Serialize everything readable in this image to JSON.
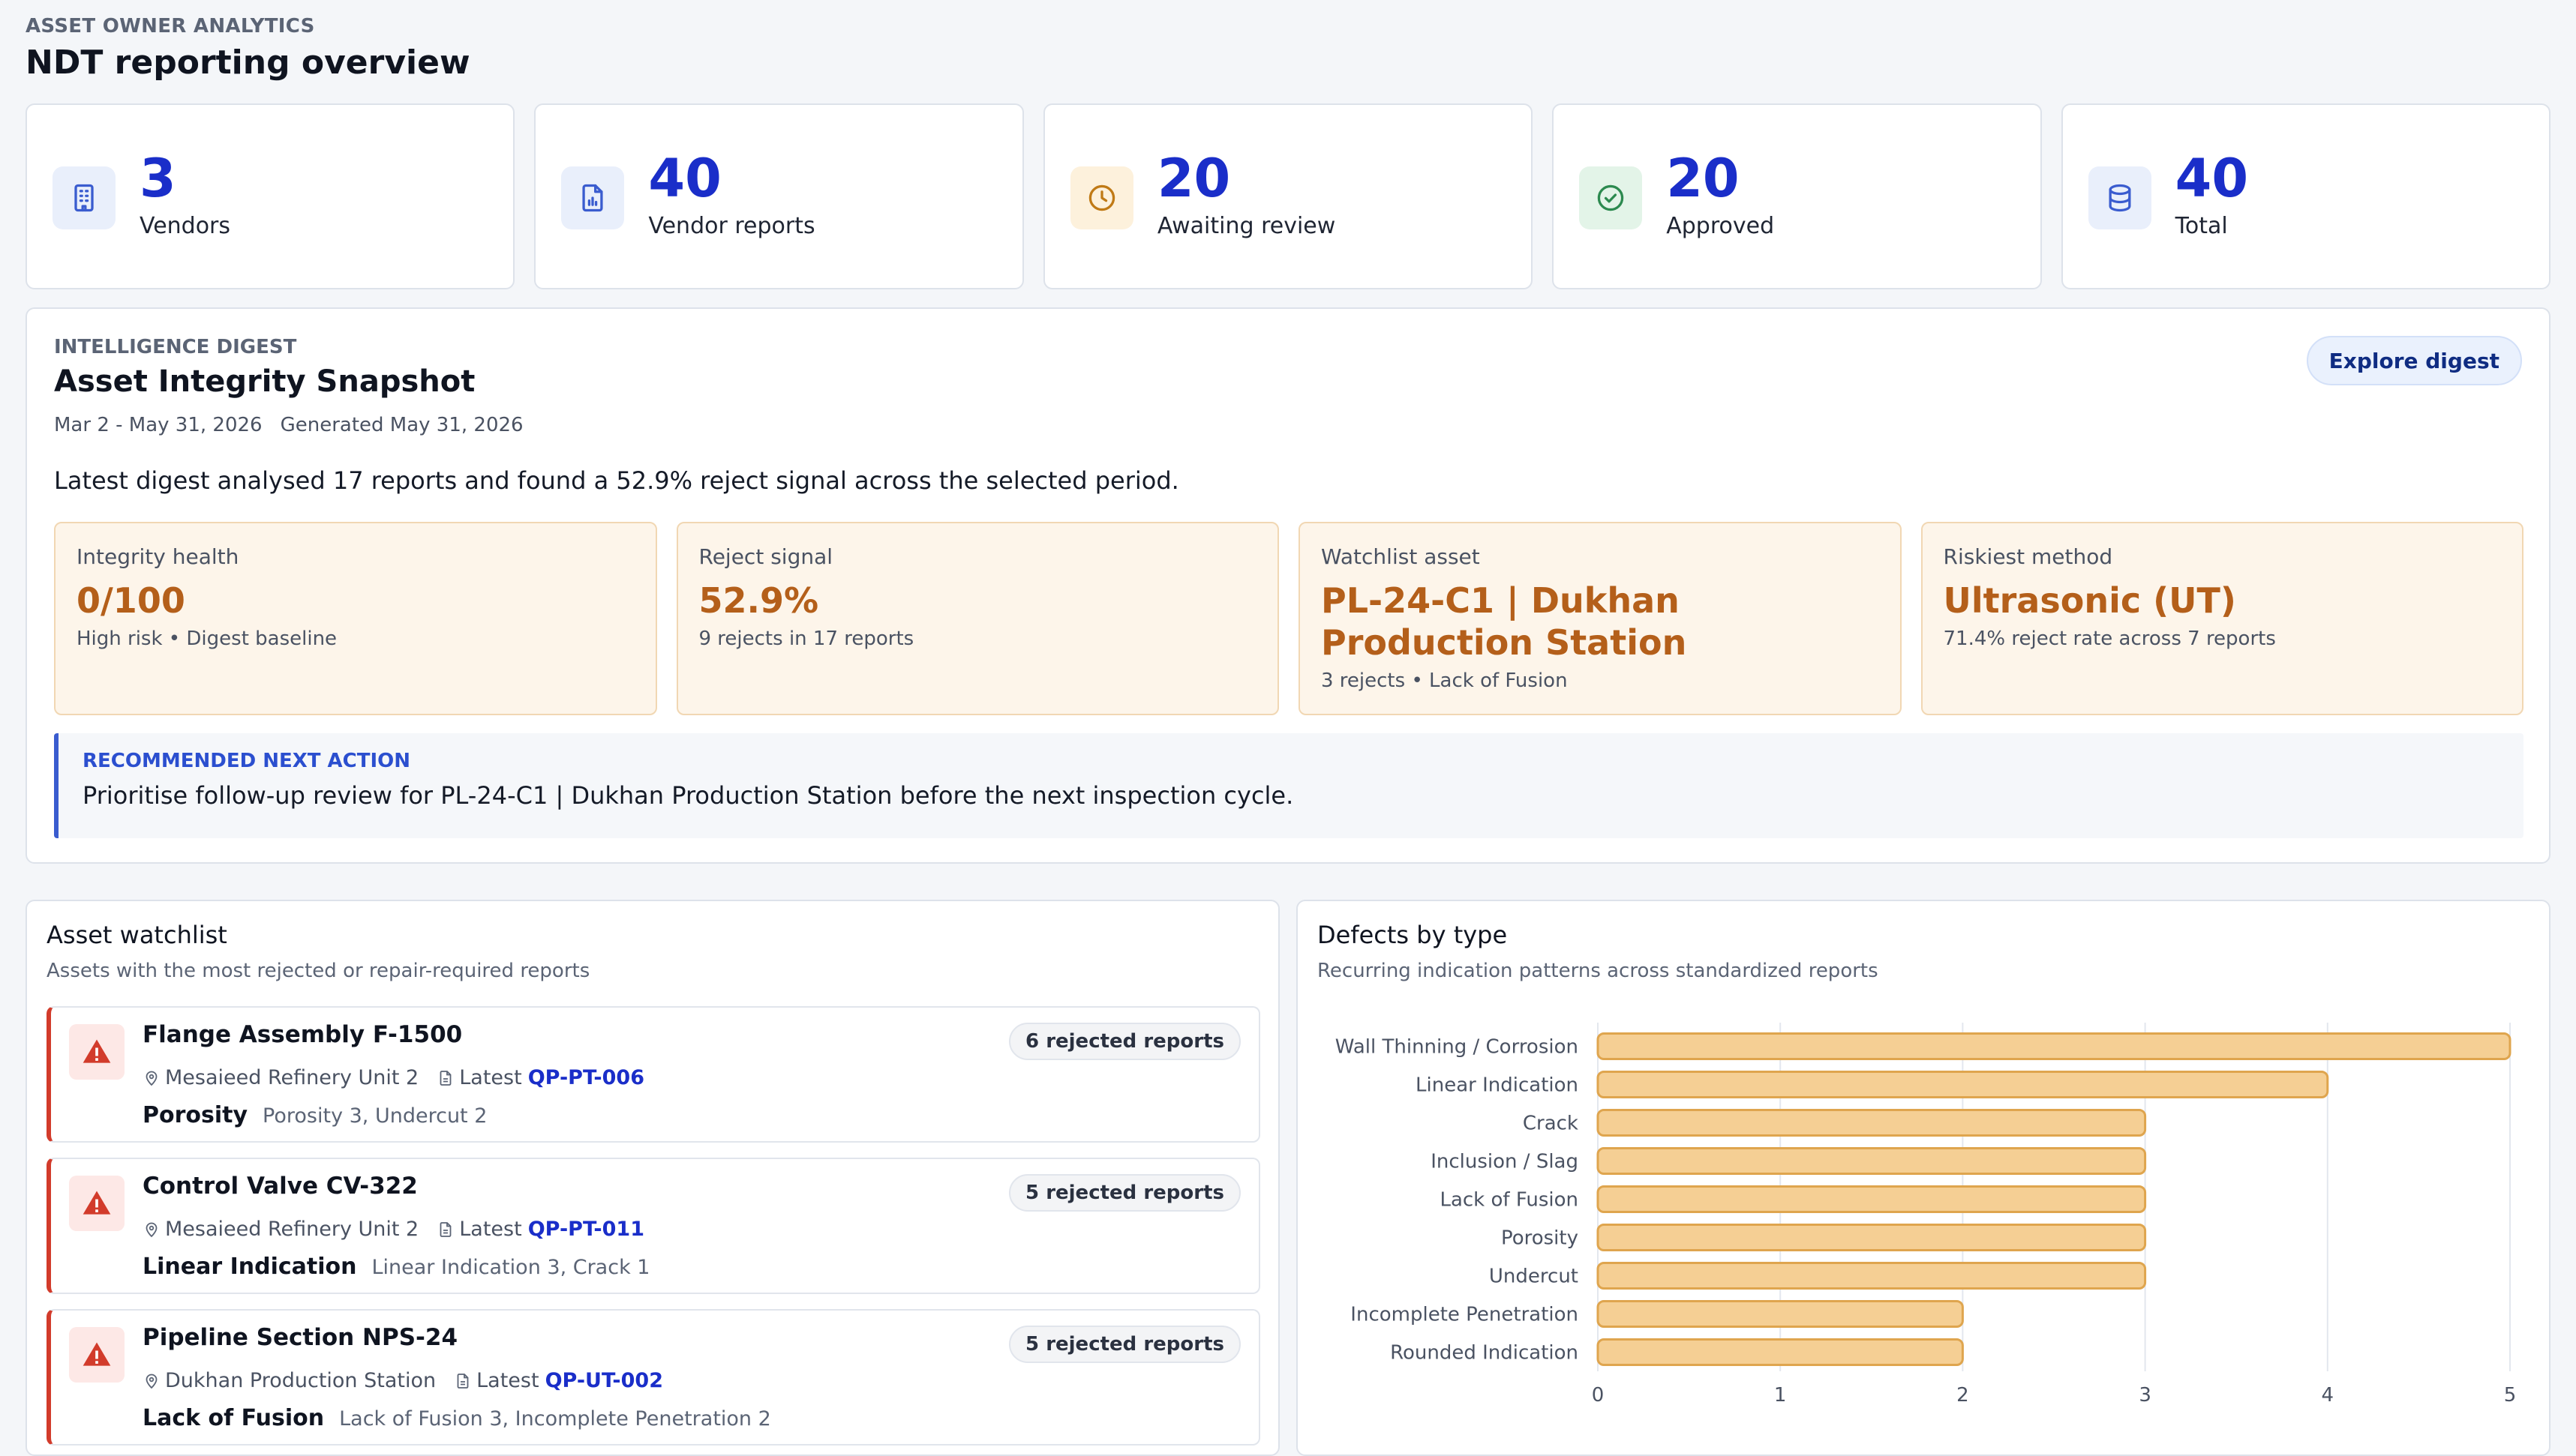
{
  "header": {
    "eyebrow": "ASSET OWNER ANALYTICS",
    "title": "NDT reporting overview"
  },
  "stats": [
    {
      "value": "3",
      "label": "Vendors",
      "icon": "building-icon",
      "color": "#3a5ccf",
      "bg": "#e9effb"
    },
    {
      "value": "40",
      "label": "Vendor reports",
      "icon": "report-chart-icon",
      "color": "#3a5ccf",
      "bg": "#e9effb"
    },
    {
      "value": "20",
      "label": "Awaiting review",
      "icon": "clock-icon",
      "color": "#c07a16",
      "bg": "#fdf1dc"
    },
    {
      "value": "20",
      "label": "Approved",
      "icon": "check-circle-icon",
      "color": "#2c8a4f",
      "bg": "#e3f4e8"
    },
    {
      "value": "40",
      "label": "Total",
      "icon": "database-icon",
      "color": "#3a5ccf",
      "bg": "#e9effb"
    }
  ],
  "digest": {
    "eyebrow": "INTELLIGENCE DIGEST",
    "title": "Asset Integrity Snapshot",
    "period": "Mar 2 - May 31, 2026",
    "generated": "Generated May 31, 2026",
    "explore_label": "Explore digest",
    "summary": "Latest digest analysed 17 reports and found a 52.9% reject signal across the selected period.",
    "metrics": [
      {
        "label": "Integrity health",
        "value": "0/100",
        "sub": "High risk • Digest baseline"
      },
      {
        "label": "Reject signal",
        "value": "52.9%",
        "sub": "9 rejects in 17 reports"
      },
      {
        "label": "Watchlist asset",
        "value": "PL-24-C1 | Dukhan Production Station",
        "sub": "3 rejects • Lack of Fusion"
      },
      {
        "label": "Riskiest method",
        "value": "Ultrasonic (UT)",
        "sub": "71.4% reject rate across 7 reports"
      }
    ],
    "next_action": {
      "label": "RECOMMENDED NEXT ACTION",
      "text": "Prioritise follow-up review for PL-24-C1 | Dukhan Production Station before the next inspection cycle."
    }
  },
  "watchlist": {
    "title": "Asset watchlist",
    "subtitle": "Assets with the most rejected or repair-required reports",
    "latest_label": "Latest",
    "items": [
      {
        "name": "Flange Assembly F-1500",
        "location": "Mesaieed Refinery Unit 2",
        "latest": "QP-PT-006",
        "defect": "Porosity",
        "breakdown": "Porosity 3, Undercut 2",
        "badge": "6 rejected reports"
      },
      {
        "name": "Control Valve CV-322",
        "location": "Mesaieed Refinery Unit 2",
        "latest": "QP-PT-011",
        "defect": "Linear Indication",
        "breakdown": "Linear Indication 3, Crack 1",
        "badge": "5 rejected reports"
      },
      {
        "name": "Pipeline Section NPS-24",
        "location": "Dukhan Production Station",
        "latest": "QP-UT-002",
        "defect": "Lack of Fusion",
        "breakdown": "Lack of Fusion 3, Incomplete Penetration 2",
        "badge": "5 rejected reports"
      }
    ]
  },
  "defects": {
    "title": "Defects by type",
    "subtitle": "Recurring indication patterns across standardized reports"
  },
  "chart_data": {
    "type": "bar",
    "orientation": "horizontal",
    "categories": [
      "Wall Thinning / Corrosion",
      "Linear Indication",
      "Crack",
      "Inclusion / Slag",
      "Lack of Fusion",
      "Porosity",
      "Undercut",
      "Incomplete Penetration",
      "Rounded Indication"
    ],
    "values": [
      5,
      4,
      3,
      3,
      3,
      3,
      3,
      2,
      2
    ],
    "xlim": [
      0,
      5
    ],
    "xticks": [
      "0",
      "1",
      "2",
      "3",
      "4",
      "5"
    ],
    "grid": true,
    "colors": {
      "bar_fill": "#f5cf94",
      "bar_stroke": "#dfa54e"
    }
  }
}
